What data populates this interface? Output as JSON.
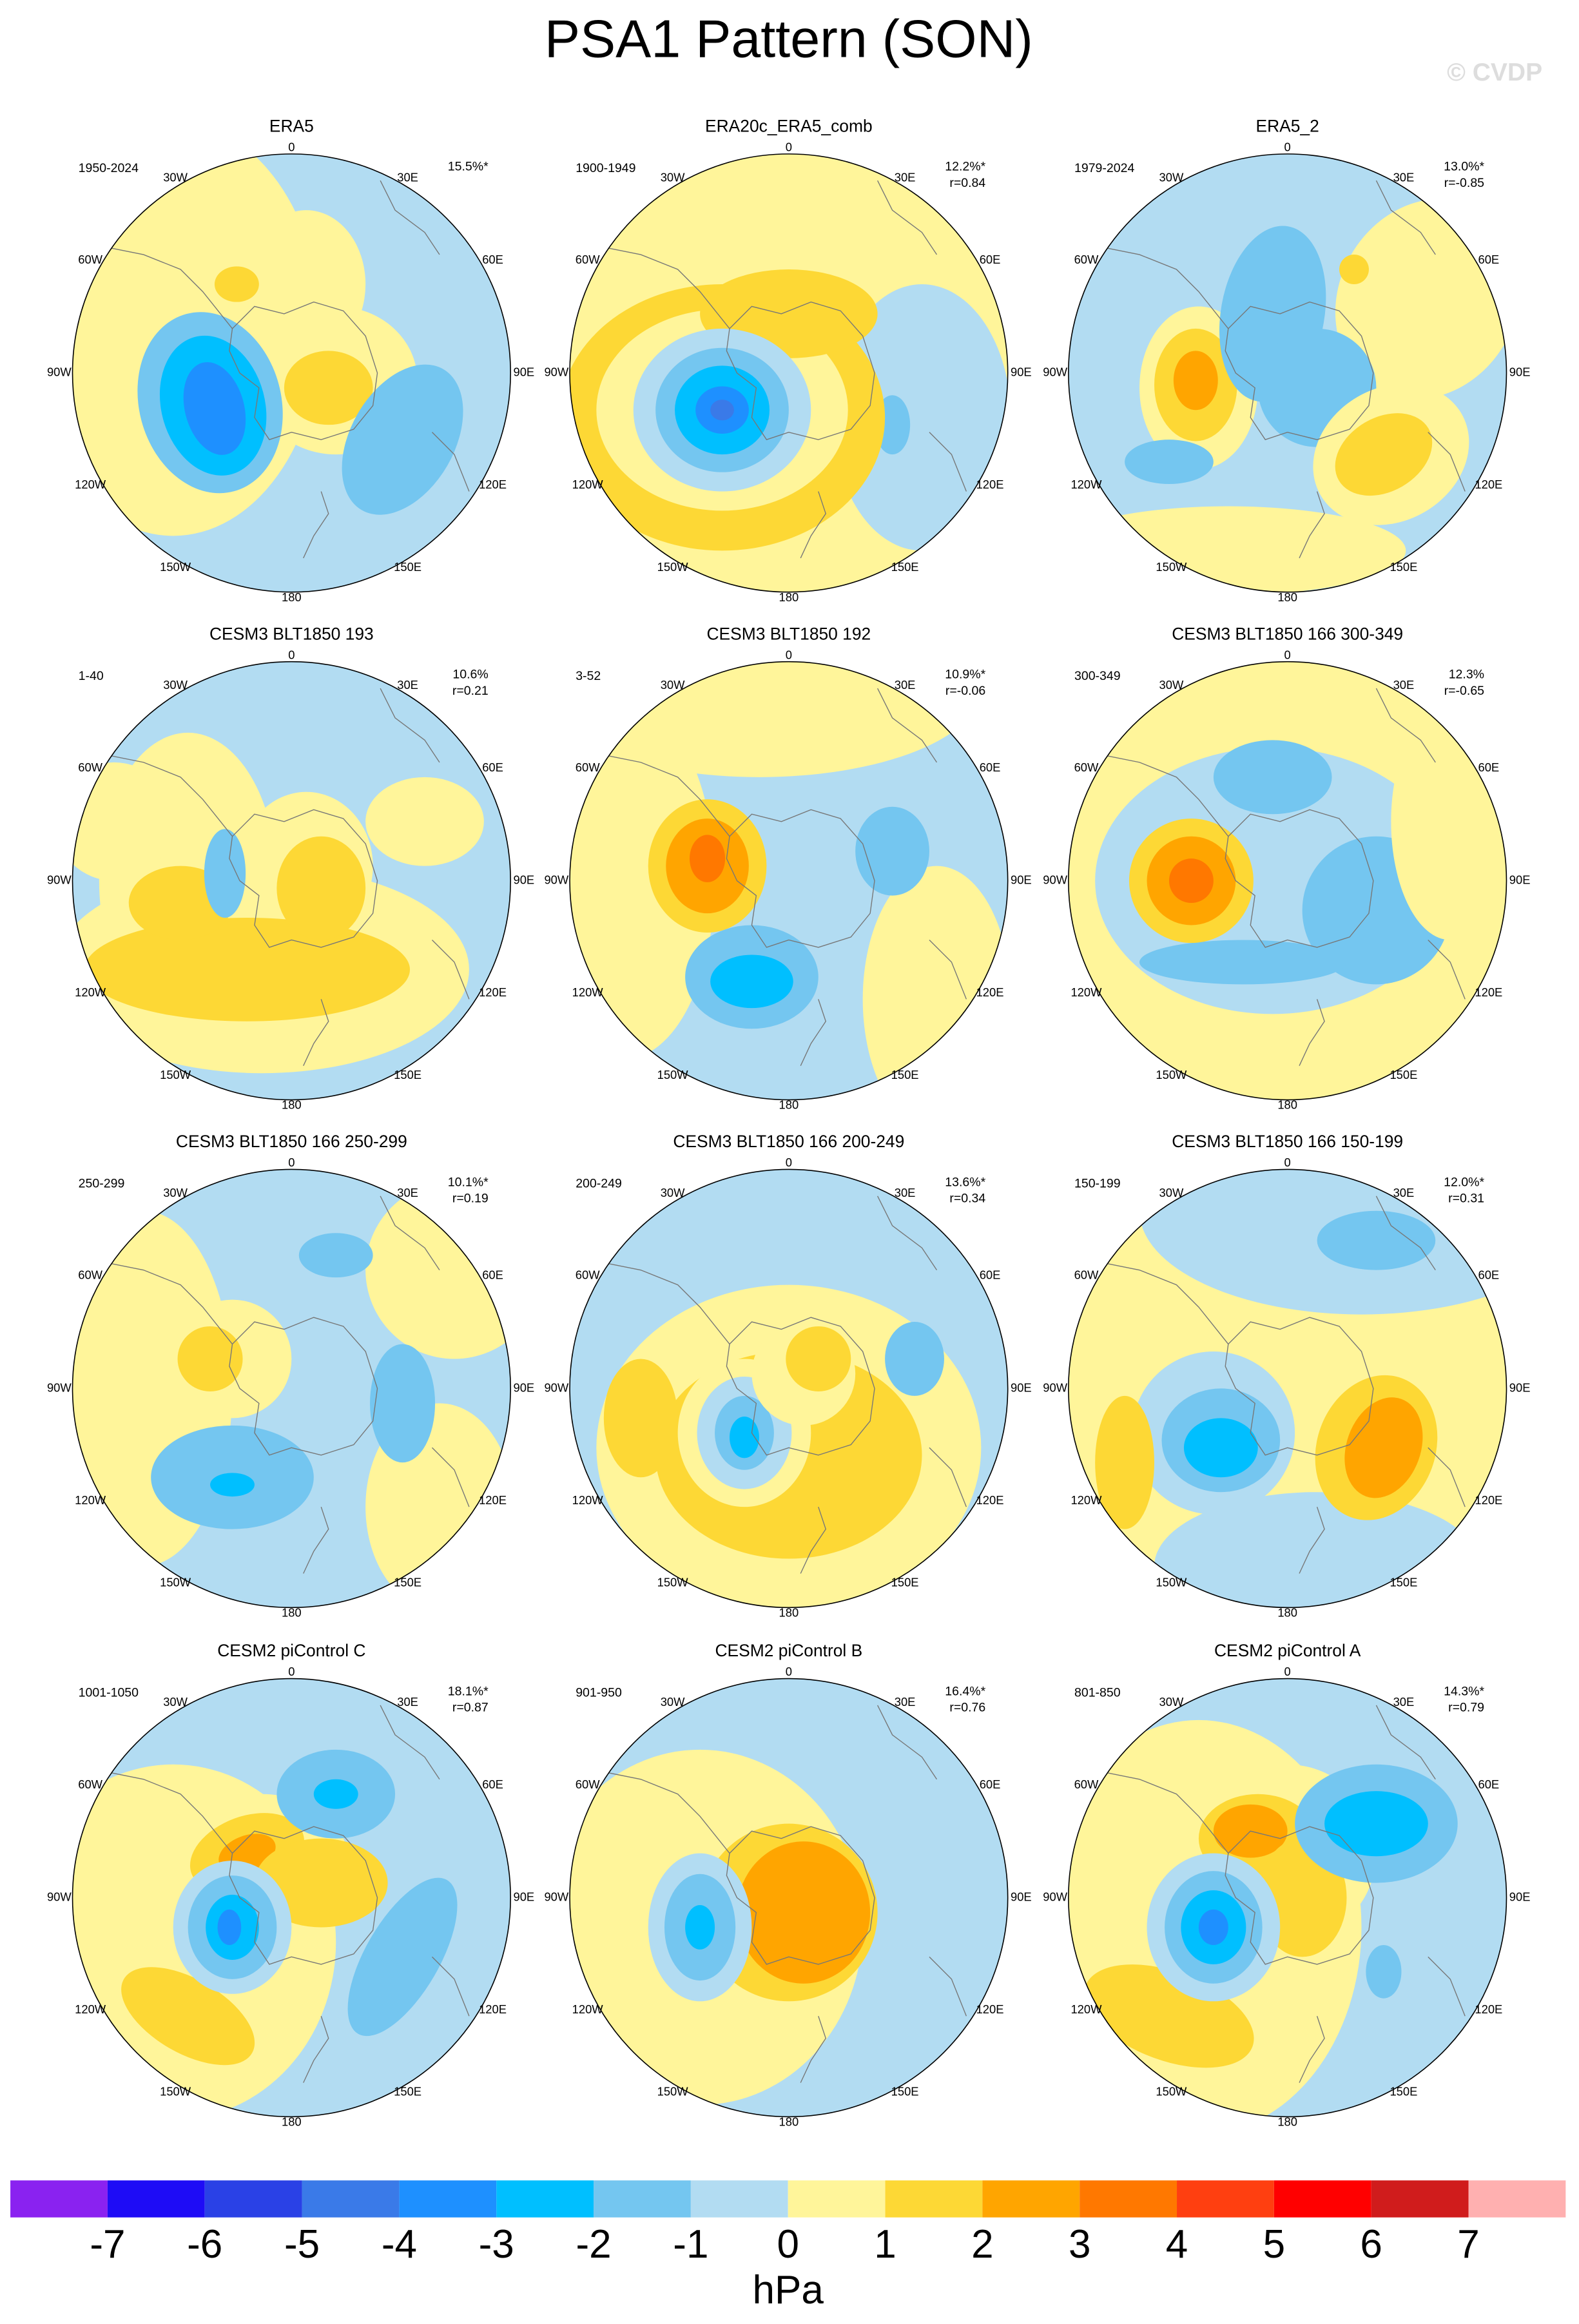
{
  "title": "PSA1 Pattern (SON)",
  "watermark": "© CVDP",
  "lon_labels": [
    "0",
    "30E",
    "60E",
    "90E",
    "120E",
    "150E",
    "180",
    "150W",
    "120W",
    "90W",
    "60W",
    "30W"
  ],
  "panels": [
    {
      "title": "ERA5",
      "period": "1950-2024",
      "variance": "15.5%*"
    },
    {
      "title": "ERA20c_ERA5_comb",
      "period": "1900-1949",
      "variance": "12.2%*",
      "r": "r=0.84"
    },
    {
      "title": "ERA5_2",
      "period": "1979-2024",
      "variance": "13.0%*",
      "r": "r=-0.85"
    },
    {
      "title": "CESM3 BLT1850 193",
      "period": "1-40",
      "variance": "10.6%",
      "r": "r=0.21"
    },
    {
      "title": "CESM3 BLT1850 192",
      "period": "3-52",
      "variance": "10.9%*",
      "r": "r=-0.06"
    },
    {
      "title": "CESM3 BLT1850 166 300-349",
      "period": "300-349",
      "variance": "12.3%",
      "r": "r=-0.65"
    },
    {
      "title": "CESM3 BLT1850 166 250-299",
      "period": "250-299",
      "variance": "10.1%*",
      "r": "r=0.19"
    },
    {
      "title": "CESM3 BLT1850 166 200-249",
      "period": "200-249",
      "variance": "13.6%*",
      "r": "r=0.34"
    },
    {
      "title": "CESM3 BLT1850 166 150-199",
      "period": "150-199",
      "variance": "12.0%*",
      "r": "r=0.31"
    },
    {
      "title": "CESM2 piControl C",
      "period": "1001-1050",
      "variance": "18.1%*",
      "r": "r=0.87"
    },
    {
      "title": "CESM2 piControl B",
      "period": "901-950",
      "variance": "16.4%*",
      "r": "r=0.76"
    },
    {
      "title": "CESM2 piControl A",
      "period": "801-850",
      "variance": "14.3%*",
      "r": "r=0.79"
    }
  ],
  "colorbar": {
    "colors": [
      "#8a22f0",
      "#1e0cf6",
      "#2a41e6",
      "#3a7ae8",
      "#1e90ff",
      "#00bfff",
      "#74c6f0",
      "#b2dcf2",
      "#fff59a",
      "#fdd835",
      "#ffa500",
      "#ff7800",
      "#ff3f10",
      "#ff0000",
      "#d01c1c",
      "#ffb0b0"
    ],
    "labels": [
      -7,
      -6,
      -5,
      -4,
      -3,
      -2,
      -1,
      0,
      1,
      2,
      3,
      4,
      5,
      6,
      7
    ],
    "unit": "hPa"
  }
}
